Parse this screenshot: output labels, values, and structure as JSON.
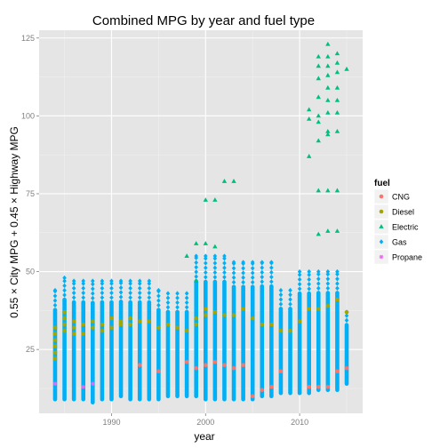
{
  "chart_data": {
    "type": "scatter",
    "title": "Combined MPG by year and fuel type",
    "xlabel": "year",
    "ylabel": "0.55 × City MPG + 0.45 × Highway MPG",
    "xlim": [
      1982.3,
      2016.7
    ],
    "ylim": [
      4.5,
      127.5
    ],
    "xticks": [
      1990,
      2000,
      2010
    ],
    "yticks": [
      25,
      50,
      75,
      100,
      125
    ],
    "grid": true,
    "legend": {
      "title": "fuel",
      "placement": "right"
    },
    "series": [
      {
        "name": "CNG",
        "color": "#F8766D",
        "marker": "circle",
        "points": [
          [
            1993,
            20
          ],
          [
            1995,
            18
          ],
          [
            1998,
            21
          ],
          [
            1999,
            19
          ],
          [
            2000,
            20
          ],
          [
            2001,
            21
          ],
          [
            2002,
            20
          ],
          [
            2003,
            19
          ],
          [
            2004,
            20
          ],
          [
            2005,
            10
          ],
          [
            2006,
            12
          ],
          [
            2007,
            13
          ],
          [
            2008,
            18
          ],
          [
            2011,
            13
          ],
          [
            2012,
            13
          ],
          [
            2013,
            13
          ],
          [
            2014,
            18
          ],
          [
            2015,
            19
          ]
        ]
      },
      {
        "name": "Diesel",
        "color": "#A3A500",
        "marker": "circle",
        "points": [
          [
            1984,
            32
          ],
          [
            1984,
            30
          ],
          [
            1984,
            28
          ],
          [
            1984,
            26
          ],
          [
            1984,
            24
          ],
          [
            1984,
            22
          ],
          [
            1985,
            37
          ],
          [
            1985,
            35
          ],
          [
            1985,
            33
          ],
          [
            1985,
            31
          ],
          [
            1986,
            34
          ],
          [
            1986,
            32
          ],
          [
            1986,
            30
          ],
          [
            1987,
            33
          ],
          [
            1987,
            30
          ],
          [
            1988,
            34
          ],
          [
            1988,
            32
          ],
          [
            1989,
            33
          ],
          [
            1989,
            31
          ],
          [
            1990,
            35
          ],
          [
            1990,
            32
          ],
          [
            1991,
            34
          ],
          [
            1991,
            33
          ],
          [
            1992,
            35
          ],
          [
            1992,
            33
          ],
          [
            1993,
            34
          ],
          [
            1994,
            34
          ],
          [
            1995,
            32
          ],
          [
            1996,
            33
          ],
          [
            1997,
            32
          ],
          [
            1998,
            31
          ],
          [
            1999,
            35
          ],
          [
            1999,
            33
          ],
          [
            2000,
            38
          ],
          [
            2000,
            36
          ],
          [
            2001,
            37
          ],
          [
            2002,
            36
          ],
          [
            2003,
            36
          ],
          [
            2004,
            38
          ],
          [
            2005,
            35
          ],
          [
            2006,
            33
          ],
          [
            2007,
            33
          ],
          [
            2008,
            31
          ],
          [
            2009,
            31
          ],
          [
            2010,
            34
          ],
          [
            2011,
            38
          ],
          [
            2012,
            38
          ],
          [
            2013,
            39
          ],
          [
            2014,
            41
          ],
          [
            2015,
            37
          ]
        ]
      },
      {
        "name": "Electric",
        "color": "#00BF7D",
        "marker": "triangle",
        "points": [
          [
            1998,
            55
          ],
          [
            1999,
            47
          ],
          [
            1999,
            59
          ],
          [
            2000,
            59
          ],
          [
            2000,
            73
          ],
          [
            2001,
            58
          ],
          [
            2001,
            73
          ],
          [
            2002,
            79
          ],
          [
            2003,
            79
          ],
          [
            2011,
            87
          ],
          [
            2011,
            99
          ],
          [
            2011,
            102
          ],
          [
            2012,
            62
          ],
          [
            2012,
            76
          ],
          [
            2012,
            92
          ],
          [
            2012,
            98
          ],
          [
            2012,
            100
          ],
          [
            2012,
            106
          ],
          [
            2012,
            112
          ],
          [
            2012,
            116
          ],
          [
            2012,
            119
          ],
          [
            2013,
            63
          ],
          [
            2013,
            76
          ],
          [
            2013,
            94
          ],
          [
            2013,
            95
          ],
          [
            2013,
            101
          ],
          [
            2013,
            105
          ],
          [
            2013,
            109
          ],
          [
            2013,
            113
          ],
          [
            2013,
            116
          ],
          [
            2013,
            119
          ],
          [
            2013,
            123
          ],
          [
            2014,
            63
          ],
          [
            2014,
            76
          ],
          [
            2014,
            95
          ],
          [
            2014,
            101
          ],
          [
            2014,
            105
          ],
          [
            2014,
            109
          ],
          [
            2014,
            114
          ],
          [
            2014,
            117
          ],
          [
            2014,
            120
          ],
          [
            2015,
            115
          ]
        ]
      },
      {
        "name": "Gas",
        "color": "#00B0F6",
        "marker": "diamond",
        "columns": [
          {
            "x": 1984,
            "min": 9,
            "max": 44
          },
          {
            "x": 1985,
            "min": 9,
            "max": 48
          },
          {
            "x": 1986,
            "min": 9,
            "max": 47
          },
          {
            "x": 1987,
            "min": 9,
            "max": 47
          },
          {
            "x": 1988,
            "min": 8,
            "max": 47
          },
          {
            "x": 1989,
            "min": 9,
            "max": 47
          },
          {
            "x": 1990,
            "min": 9,
            "max": 47
          },
          {
            "x": 1991,
            "min": 10,
            "max": 47
          },
          {
            "x": 1992,
            "min": 9,
            "max": 47
          },
          {
            "x": 1993,
            "min": 9,
            "max": 47
          },
          {
            "x": 1994,
            "min": 9,
            "max": 47
          },
          {
            "x": 1995,
            "min": 9,
            "max": 44
          },
          {
            "x": 1996,
            "min": 10,
            "max": 43
          },
          {
            "x": 1997,
            "min": 10,
            "max": 43
          },
          {
            "x": 1998,
            "min": 10,
            "max": 43
          },
          {
            "x": 1999,
            "min": 10,
            "max": 55
          },
          {
            "x": 2000,
            "min": 9,
            "max": 55
          },
          {
            "x": 2001,
            "min": 9,
            "max": 55
          },
          {
            "x": 2002,
            "min": 9,
            "max": 55
          },
          {
            "x": 2003,
            "min": 9,
            "max": 53
          },
          {
            "x": 2004,
            "min": 9,
            "max": 53
          },
          {
            "x": 2005,
            "min": 9,
            "max": 53
          },
          {
            "x": 2006,
            "min": 10,
            "max": 53
          },
          {
            "x": 2007,
            "min": 10,
            "max": 53
          },
          {
            "x": 2008,
            "min": 11,
            "max": 44
          },
          {
            "x": 2009,
            "min": 11,
            "max": 44
          },
          {
            "x": 2010,
            "min": 11,
            "max": 50
          },
          {
            "x": 2011,
            "min": 11,
            "max": 50
          },
          {
            "x": 2012,
            "min": 12,
            "max": 50
          },
          {
            "x": 2013,
            "min": 12,
            "max": 50
          },
          {
            "x": 2014,
            "min": 12,
            "max": 50
          },
          {
            "x": 2015,
            "min": 14,
            "max": 37
          }
        ]
      },
      {
        "name": "Propane",
        "color": "#E76BF3",
        "marker": "star",
        "points": [
          [
            1984,
            14
          ],
          [
            1987,
            13
          ],
          [
            1988,
            14
          ]
        ]
      }
    ]
  }
}
